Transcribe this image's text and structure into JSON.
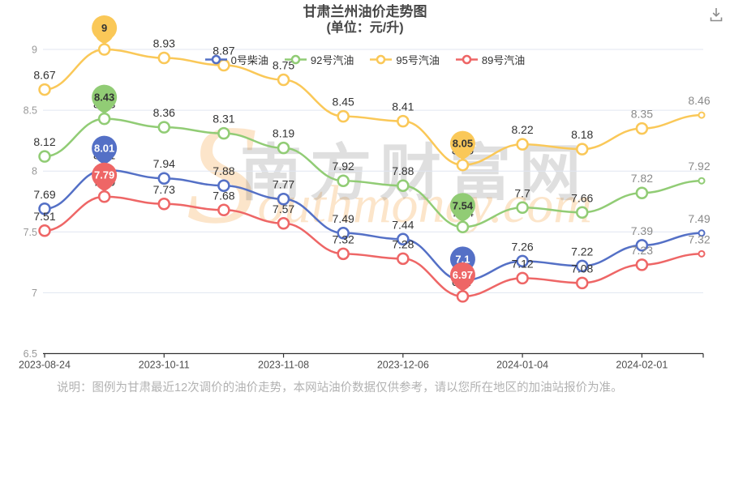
{
  "header": {
    "title": "甘肃兰州油价走势图",
    "subtitle": "(单位：元/升)"
  },
  "toolbox": {
    "icon": "download-icon"
  },
  "watermark": {
    "text_cn": "南方财富网",
    "text_en_initial": "S",
    "text_en_rest": "outhmoney.com"
  },
  "footer": {
    "note": "说明：图例为甘肃最近12次调价的油价走势，本网站油价数据仅供参考，请以您所在地区的加油站报价为准。"
  },
  "chart_data": {
    "type": "line",
    "title": "甘肃兰州油价走势图",
    "unit": "元/升",
    "num_points": 12,
    "x_tick_labels": [
      "2023-08-24",
      "2023-10-11",
      "2023-11-08",
      "2023-12-06",
      "2024-01-04",
      "2024-02-01"
    ],
    "labeled_point_indices": [
      0,
      2,
      4,
      6,
      8,
      10
    ],
    "muted_label_indices": [
      10,
      11
    ],
    "ylim": [
      6.5,
      9
    ],
    "y_ticks": [
      6.5,
      7,
      7.5,
      8,
      8.5,
      9
    ],
    "grid": true,
    "legend_position": "top",
    "colors": {
      "axis_line": "#333333",
      "grid_line": "#E0E6F1",
      "label": "#333333",
      "muted_label": "#8a8a8a"
    },
    "series": [
      {
        "name": "0号柴油",
        "color": "#5470C6",
        "values": [
          7.69,
          8.01,
          7.94,
          7.88,
          7.77,
          7.49,
          7.44,
          7.1,
          7.26,
          7.22,
          7.39,
          7.49
        ],
        "max": {
          "index": 1,
          "value": 8.01
        },
        "min": {
          "index": 7,
          "value": 7.1
        }
      },
      {
        "name": "92号汽油",
        "color": "#91CC75",
        "values": [
          8.12,
          8.43,
          8.36,
          8.31,
          8.19,
          7.92,
          7.88,
          7.54,
          7.7,
          7.66,
          7.82,
          7.92
        ],
        "max": {
          "index": 1,
          "value": 8.43
        },
        "min": {
          "index": 7,
          "value": 7.54
        }
      },
      {
        "name": "95号汽油",
        "color": "#FAC858",
        "values": [
          8.67,
          9,
          8.93,
          8.87,
          8.75,
          8.45,
          8.41,
          8.05,
          8.22,
          8.18,
          8.35,
          8.46
        ],
        "max": {
          "index": 1,
          "value": 9
        },
        "min": {
          "index": 7,
          "value": 8.05
        }
      },
      {
        "name": "89号汽油",
        "color": "#EE6666",
        "values": [
          7.51,
          7.79,
          7.73,
          7.68,
          7.57,
          7.32,
          7.28,
          6.97,
          7.12,
          7.08,
          7.23,
          7.32
        ],
        "max": {
          "index": 1,
          "value": 7.79
        },
        "min": {
          "index": 7,
          "value": 6.97
        }
      }
    ]
  }
}
